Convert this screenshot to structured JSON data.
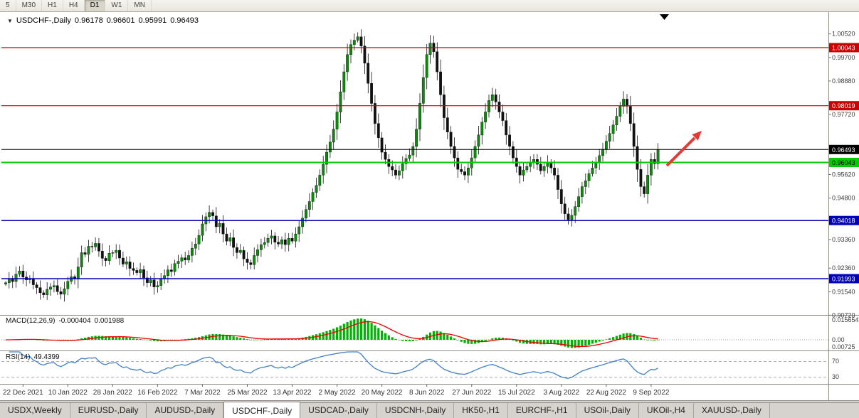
{
  "toolbar": {
    "timeframes": [
      "5",
      "M30",
      "H1",
      "H4",
      "D1",
      "W1",
      "MN"
    ],
    "active": "D1"
  },
  "symbol_info": {
    "dropdown_icon": "▼",
    "name": "USDCHF-,Daily",
    "open": "0.96178",
    "high": "0.96601",
    "low": "0.95991",
    "close": "0.96493"
  },
  "chart_data": [
    {
      "type": "candlestick",
      "title": "USDCHF-,Daily",
      "symbol": "USDCHF-",
      "timeframe": "Daily",
      "ohlc_display": {
        "open": 0.96178,
        "high": 0.96601,
        "low": 0.95991,
        "close": 0.96493
      },
      "ylim": [
        0.90729,
        1.01306
      ],
      "first_open": 0.918,
      "closes": [
        0.9185,
        0.9198,
        0.9189,
        0.9215,
        0.9226,
        0.9205,
        0.9195,
        0.9199,
        0.9178,
        0.9168,
        0.915,
        0.9143,
        0.9162,
        0.917,
        0.9175,
        0.9154,
        0.9145,
        0.9164,
        0.919,
        0.9206,
        0.9198,
        0.924,
        0.929,
        0.9284,
        0.9312,
        0.931,
        0.9322,
        0.9295,
        0.927,
        0.9262,
        0.9288,
        0.929,
        0.9298,
        0.9271,
        0.925,
        0.9258,
        0.9235,
        0.9228,
        0.922,
        0.9231,
        0.9202,
        0.9185,
        0.9195,
        0.917,
        0.9175,
        0.9198,
        0.921,
        0.923,
        0.9224,
        0.9252,
        0.926,
        0.9272,
        0.9264,
        0.928,
        0.9305,
        0.932,
        0.935,
        0.939,
        0.9415,
        0.943,
        0.9418,
        0.938,
        0.9392,
        0.9355,
        0.933,
        0.9342,
        0.9308,
        0.929,
        0.9298,
        0.9268,
        0.9255,
        0.9248,
        0.928,
        0.93,
        0.9318,
        0.9325,
        0.934,
        0.9348,
        0.9326,
        0.932,
        0.9335,
        0.9318,
        0.934,
        0.933,
        0.9355,
        0.938,
        0.941,
        0.944,
        0.9468,
        0.95,
        0.9524,
        0.956,
        0.9598,
        0.964,
        0.9675,
        0.972,
        0.978,
        0.985,
        0.992,
        0.998,
        1.0015,
        1.003,
        1.0042,
        1.001,
        0.995,
        0.988,
        0.981,
        0.974,
        0.969,
        0.964,
        0.9615,
        0.959,
        0.9578,
        0.956,
        0.9575,
        0.96,
        0.9618,
        0.963,
        0.966,
        0.972,
        0.981,
        0.99,
        0.998,
        1.002,
        0.999,
        0.992,
        0.984,
        0.976,
        0.971,
        0.966,
        0.962,
        0.958,
        0.9572,
        0.956,
        0.9585,
        0.962,
        0.966,
        0.97,
        0.9745,
        0.978,
        0.982,
        0.984,
        0.9815,
        0.978,
        0.975,
        0.97,
        0.966,
        0.962,
        0.959,
        0.956,
        0.9578,
        0.959,
        0.9605,
        0.9615,
        0.9598,
        0.9575,
        0.959,
        0.9605,
        0.9585,
        0.956,
        0.951,
        0.946,
        0.9425,
        0.9405,
        0.942,
        0.945,
        0.9485,
        0.952,
        0.954,
        0.9565,
        0.9585,
        0.9605,
        0.9628,
        0.965,
        0.9678,
        0.9705,
        0.9735,
        0.9765,
        0.98,
        0.9825,
        0.98,
        0.974,
        0.966,
        0.958,
        0.952,
        0.9495,
        0.956,
        0.9615,
        0.96,
        0.96493
      ],
      "x_label_indices": [
        5,
        18,
        31,
        44,
        57,
        70,
        83,
        96,
        109,
        122,
        135,
        148,
        161,
        174,
        187
      ],
      "x_labels": [
        "22 Dec 2021",
        "10 Jan 2022",
        "28 Jan 2022",
        "16 Feb 2022",
        "7 Mar 2022",
        "25 Mar 2022",
        "13 Apr 2022",
        "2 May 2022",
        "20 May 2022",
        "8 Jun 2022",
        "27 Jun 2022",
        "15 Jul 2022",
        "3 Aug 2022",
        "22 Aug 2022",
        "9 Sep 2022"
      ],
      "y_ticks": [
        {
          "label": "1.00520",
          "value": 1.0052
        },
        {
          "label": "0.99700",
          "value": 0.997
        },
        {
          "label": "0.98880",
          "value": 0.9888
        },
        {
          "label": "0.97720",
          "value": 0.9772
        },
        {
          "label": "0.95620",
          "value": 0.9562
        },
        {
          "label": "0.94800",
          "value": 0.948
        },
        {
          "label": "0.93360",
          "value": 0.9336
        },
        {
          "label": "0.92360",
          "value": 0.9236
        },
        {
          "label": "0.91540",
          "value": 0.9154
        },
        {
          "label": "0.90720",
          "value": 0.9072
        }
      ],
      "levels": [
        {
          "label": "1.00043",
          "value": 1.00043,
          "color": "#cc0000",
          "text": "#ffffff",
          "width": 1.2
        },
        {
          "label": "0.98019",
          "value": 0.98019,
          "color": "#cc0000",
          "text": "#ffffff",
          "width": 1.2
        },
        {
          "label": "0.96493",
          "value": 0.96493,
          "color": "#000000",
          "text": "#ffffff",
          "width": 1
        },
        {
          "label": "0.96043",
          "value": 0.96043,
          "color": "#00cc00",
          "text": "#000000",
          "width": 2
        },
        {
          "label": "0.94018",
          "value": 0.94018,
          "color": "#0000bb",
          "text": "#ffffff",
          "width": 1.5
        },
        {
          "label": "0.91993",
          "value": 0.91993,
          "color": "#0000bb",
          "text": "#ffffff",
          "width": 1.5
        }
      ],
      "colors": {
        "bull": "#0b8a0b",
        "bear": "#111111",
        "wick": "#111111"
      },
      "annotations": {
        "arrow_color": "#e53935",
        "top_marker_color": "#000000"
      }
    },
    {
      "type": "macd",
      "label": "MACD(12,26,9)",
      "values": [
        "-0.000404",
        "0.001988"
      ],
      "params": [
        12,
        26,
        9
      ],
      "axis_labels": [
        "0.015654",
        "0.00",
        "0.00725"
      ],
      "colors": {
        "histogram": "#00b300",
        "signal": "#ee0000"
      }
    },
    {
      "type": "rsi",
      "label": "RSI(14)",
      "value": "49.4399",
      "period": 14,
      "levels": [
        "70",
        "30"
      ],
      "color": "#3f7fca"
    }
  ],
  "bottom_tabs": {
    "active": "USDCHF-,Daily",
    "tabs": [
      "USDX,Weekly",
      "EURUSD-,Daily",
      "AUDUSD-,Daily",
      "USDCHF-,Daily",
      "USDCAD-,Daily",
      "USDCNH-,Daily",
      "HK50-,H1",
      "EURCHF-,H1",
      "USOil-,Daily",
      "UKOil-,H4",
      "XAUUSD-,Daily"
    ]
  }
}
